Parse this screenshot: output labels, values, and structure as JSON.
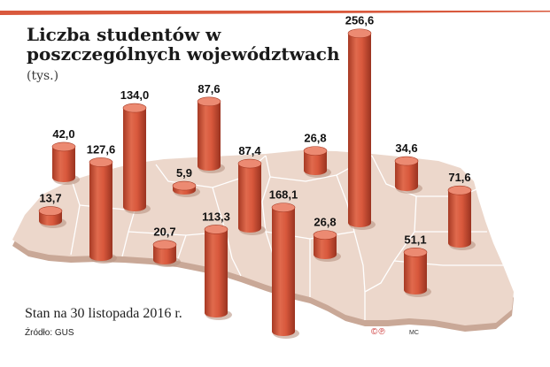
{
  "title_main": "Liczba studentów w poszczególnych województwach",
  "title_unit": "(tys.)",
  "footnote": "Stan na 30 listopada 2016 r.",
  "source": "Źródło: GUS",
  "copyright": "©℗",
  "author": "MC",
  "colors": {
    "cylinder": "#d9593d",
    "cylinder_dark": "#a73a24",
    "cylinder_top": "#ec8a72",
    "map": "#ecd7cb",
    "map_edge": "#c9a897",
    "borders": "#ffffff",
    "accent_line": "#d9593d"
  },
  "chart_data": {
    "type": "bar",
    "title": "Liczba studentów w poszczególnych województwach",
    "unit": "tys.",
    "values": [
      256.6,
      134.0,
      127.6,
      87.6,
      87.4,
      42.0,
      34.6,
      168.1,
      26.8,
      5.9,
      113.3,
      13.7,
      71.6,
      26.8,
      20.7,
      51.1
    ],
    "labels": [
      "256,6",
      "134,0",
      "127,6",
      "87,6",
      "87,4",
      "42,0",
      "34,6",
      "168,1",
      "26,8",
      "5,9",
      "113,3",
      "13,7",
      "71,6",
      "26,8",
      "20,7",
      "51,1"
    ]
  }
}
